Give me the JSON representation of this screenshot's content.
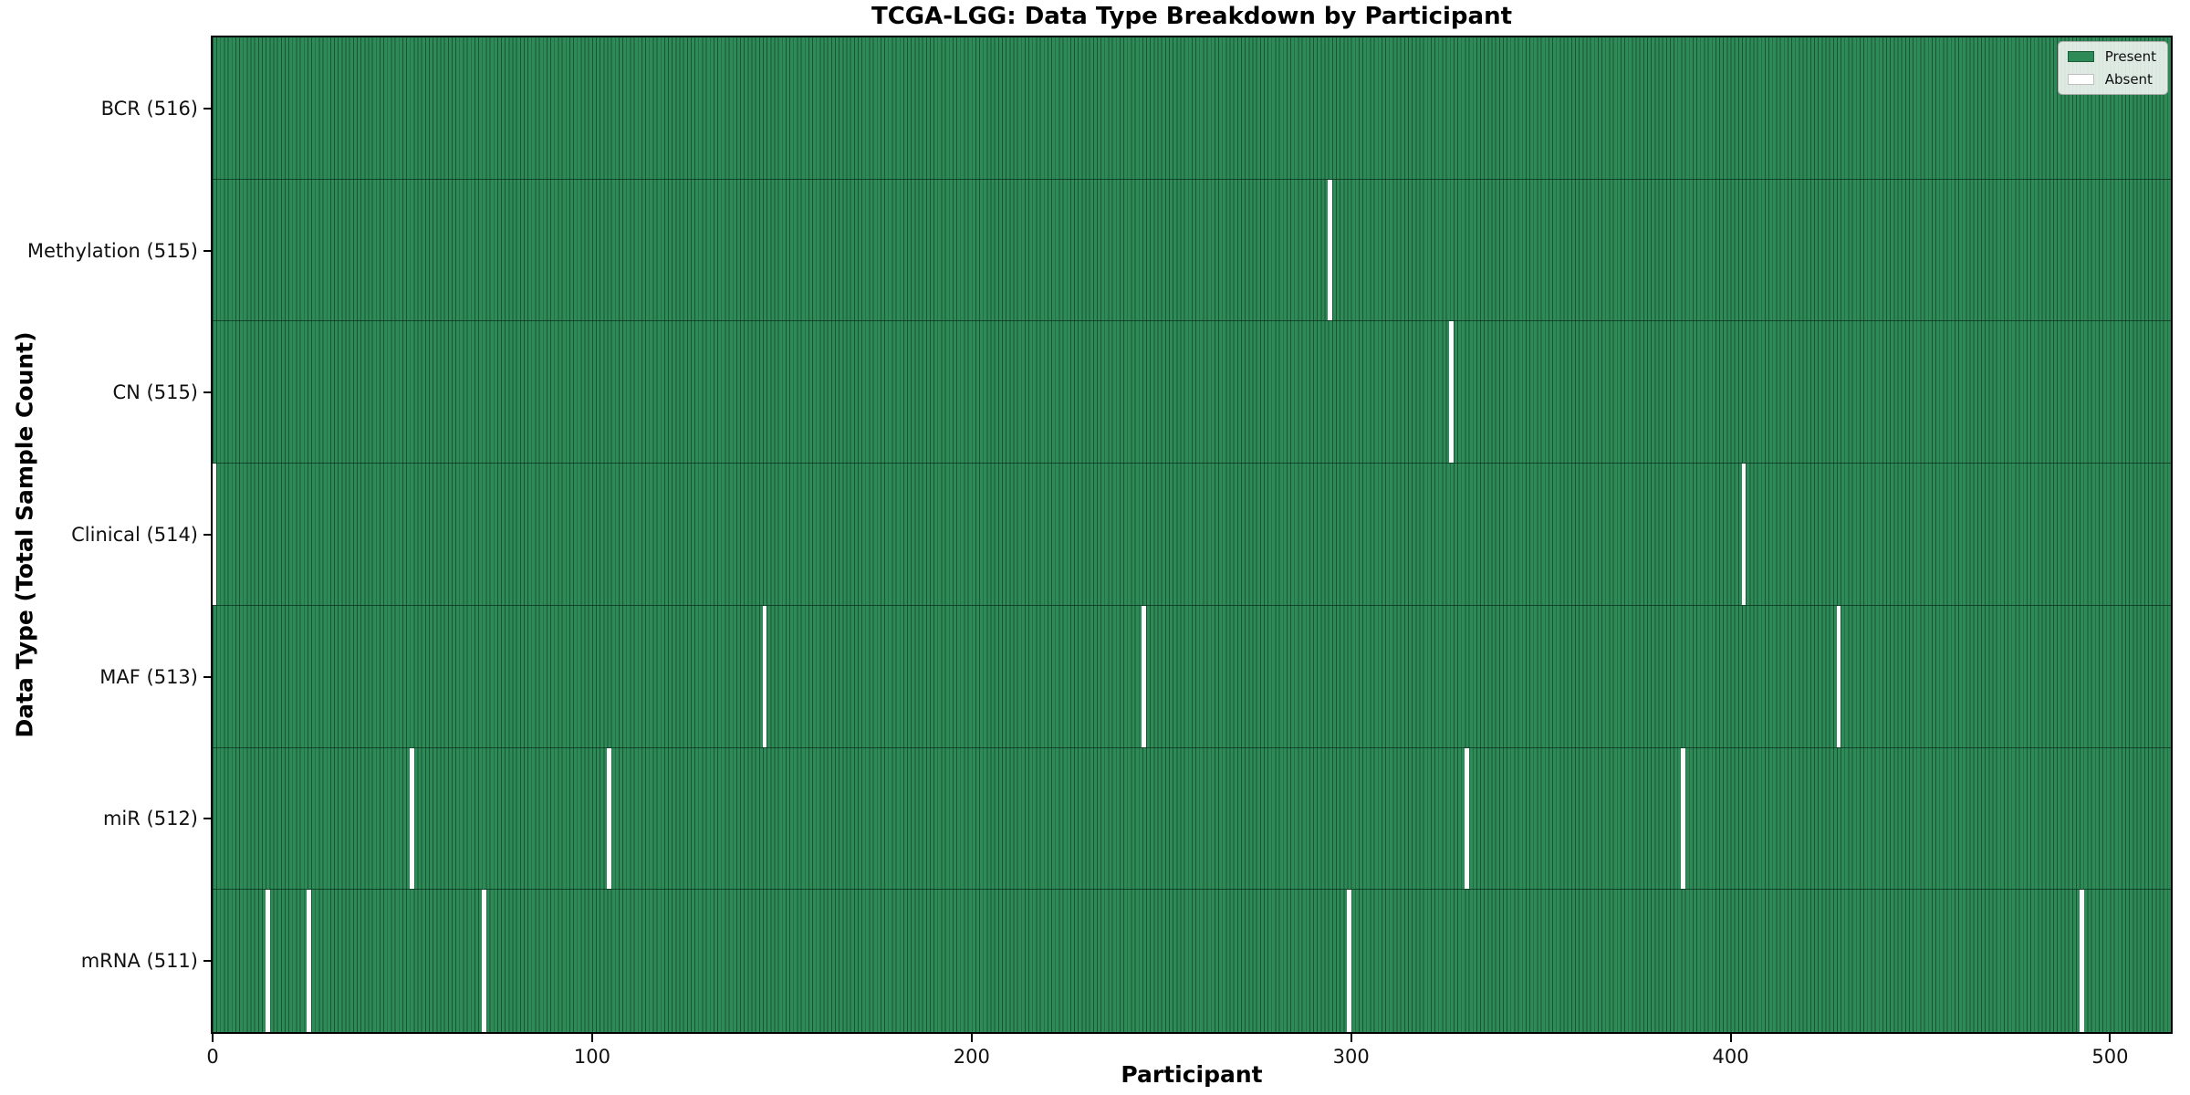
{
  "chart_data": {
    "type": "heatmap",
    "title": "TCGA-LGG: Data Type Breakdown by Participant",
    "xlabel": "Participant",
    "ylabel": "Data Type (Total Sample Count)",
    "x_ticks": [
      0,
      100,
      200,
      300,
      400,
      500
    ],
    "x_range": [
      0,
      516
    ],
    "total_participants": 516,
    "grid": false,
    "legend_position": "upper right",
    "legend": [
      {
        "label": "Present",
        "color": "#2e8b57"
      },
      {
        "label": "Absent",
        "color": "#ffffff"
      }
    ],
    "colors": {
      "present": "#2e8b57",
      "absent": "#ffffff",
      "cell_edge": "#0a2618"
    },
    "rows": [
      {
        "label": "BCR (516)",
        "data_type": "BCR",
        "present_count": 516,
        "absent_participants": []
      },
      {
        "label": "Methylation (515)",
        "data_type": "Methylation",
        "present_count": 515,
        "absent_participants": [
          294
        ]
      },
      {
        "label": "CN (515)",
        "data_type": "CN",
        "present_count": 515,
        "absent_participants": [
          326
        ]
      },
      {
        "label": "Clinical (514)",
        "data_type": "Clinical",
        "present_count": 514,
        "absent_participants": [
          0,
          403
        ]
      },
      {
        "label": "MAF (513)",
        "data_type": "MAF",
        "present_count": 513,
        "absent_participants": [
          145,
          245,
          428
        ]
      },
      {
        "label": "miR (512)",
        "data_type": "miR",
        "present_count": 512,
        "absent_participants": [
          52,
          104,
          330,
          387
        ]
      },
      {
        "label": "mRNA (511)",
        "data_type": "mRNA",
        "present_count": 511,
        "absent_participants": [
          14,
          25,
          71,
          299,
          492
        ]
      }
    ]
  }
}
